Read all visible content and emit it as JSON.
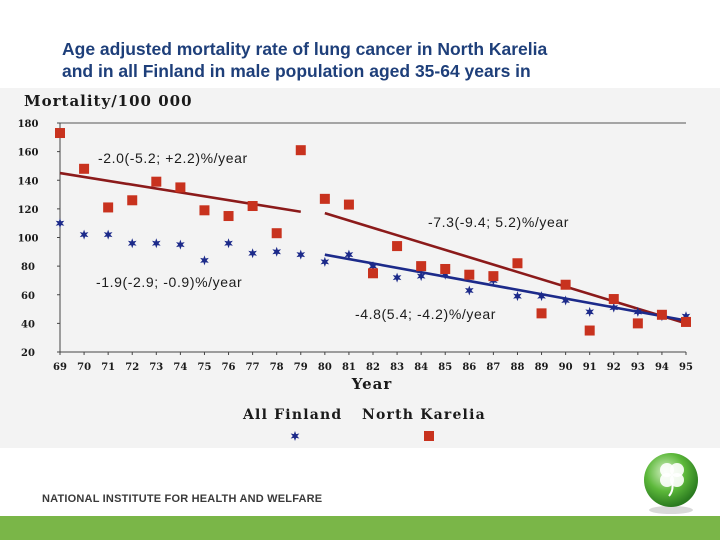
{
  "chart_data": {
    "type": "scatter",
    "title_lines": [
      "Age adjusted mortality rate of lung cancer in North Karelia",
      "and in all Finland in male population aged 35-64 years in"
    ],
    "ylabel": "Mortality/100 000",
    "xlabel": "Year",
    "categories": [
      "69",
      "70",
      "71",
      "72",
      "73",
      "74",
      "75",
      "76",
      "77",
      "78",
      "79",
      "80",
      "81",
      "82",
      "83",
      "84",
      "85",
      "86",
      "87",
      "88",
      "89",
      "90",
      "91",
      "92",
      "93",
      "94",
      "95"
    ],
    "yticks": [
      "180",
      "160",
      "140",
      "120",
      "100",
      "80",
      "60",
      "40",
      "20"
    ],
    "ylim": [
      20,
      180
    ],
    "grid": "horizontal-top-only",
    "legend": {
      "entries": [
        {
          "label": "All Finland",
          "color": "#1c2a8a",
          "marker": "star"
        },
        {
          "label": "North Karelia",
          "color": "#c8321e",
          "marker": "square"
        }
      ],
      "placement": "bottom"
    },
    "series": [
      {
        "label_key": "all_finland",
        "color": "#1c2a8a",
        "marker": "star",
        "x": [
          "69",
          "70",
          "71",
          "72",
          "73",
          "74",
          "75",
          "76",
          "77",
          "78",
          "79",
          "80",
          "81",
          "82",
          "83",
          "84",
          "85",
          "86",
          "87",
          "88",
          "89",
          "90",
          "91",
          "92",
          "93",
          "94",
          "95"
        ],
        "values": [
          110,
          102,
          102,
          96,
          96,
          95,
          84,
          96,
          89,
          90,
          88,
          83,
          88,
          80,
          72,
          73,
          74,
          63,
          70,
          59,
          59,
          56,
          48,
          51,
          48,
          45,
          45
        ]
      },
      {
        "label_key": "north_karelia",
        "color": "#c8321e",
        "marker": "square",
        "x": [
          "69",
          "70",
          "71",
          "72",
          "73",
          "74",
          "75",
          "76",
          "77",
          "78",
          "79",
          "80",
          "81",
          "82",
          "83",
          "84",
          "85",
          "86",
          "87",
          "88",
          "89",
          "90",
          "91",
          "92",
          "93",
          "94",
          "95"
        ],
        "values": [
          173,
          148,
          121,
          126,
          139,
          135,
          119,
          115,
          122,
          103,
          161,
          127,
          123,
          75,
          94,
          80,
          78,
          74,
          73,
          82,
          47,
          67,
          35,
          57,
          40,
          46,
          41
        ]
      }
    ],
    "trendlines": [
      {
        "color": "#8b1a1a",
        "from": {
          "x": "69",
          "y": 145
        },
        "to": {
          "x": "79",
          "y": 118
        }
      },
      {
        "color": "#8b1a1a",
        "from": {
          "x": "80",
          "y": 117
        },
        "to": {
          "x": "95",
          "y": 40
        }
      },
      {
        "color": "#1c2a8a",
        "from": {
          "x": "80",
          "y": 88
        },
        "to": {
          "x": "95",
          "y": 42
        }
      }
    ],
    "annotations": [
      {
        "text": "-2.0(-5.2; +2.2)%/year",
        "color": "#1c1c1c"
      },
      {
        "text": "-7.3(-9.4; 5.2)%/year",
        "color": "#1c1c1c"
      },
      {
        "text": "-1.9(-2.9; -0.9)%/year",
        "color": "#1c1c1c"
      },
      {
        "text": "-4.8(5.4; -4.2)%/year",
        "color": "#1c1c1c"
      }
    ]
  },
  "footer": {
    "institute": "NATIONAL INSTITUTE FOR HEALTH AND WELFARE"
  },
  "colors": {
    "title": "#1e3f7a",
    "footer_bar": "#7ab648",
    "logo_green": "#3f9e2e"
  },
  "icons": {
    "logo": "globe-clover-icon"
  }
}
